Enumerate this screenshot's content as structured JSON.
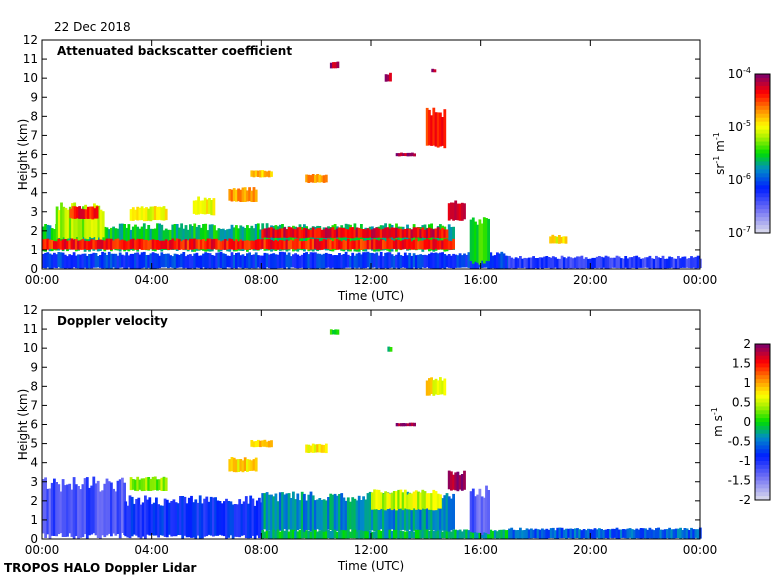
{
  "header": {
    "date": "22 Dec 2018"
  },
  "footer": {
    "instrument": "TROPOS HALO Doppler Lidar"
  },
  "chart_data": [
    {
      "type": "heatmap",
      "title": "Attenuated backscatter coefficient",
      "xlabel": "Time (UTC)",
      "ylabel": "Height (km)",
      "xlim": [
        0,
        24
      ],
      "ylim": [
        0,
        12
      ],
      "xticks": [
        "00:00",
        "04:00",
        "08:00",
        "12:00",
        "16:00",
        "20:00",
        "00:00"
      ],
      "yticks": [
        "0",
        "1",
        "2",
        "3",
        "4",
        "5",
        "6",
        "7",
        "8",
        "9",
        "10",
        "11",
        "12"
      ],
      "colorbar": {
        "label_base": "sr",
        "label_exp1": "-1",
        "label_m": " m",
        "label_exp2": "-1",
        "scale": "log",
        "range": [
          -7,
          -4
        ],
        "ticks": [
          {
            "base": "10",
            "exp": "-4"
          },
          {
            "base": "10",
            "exp": "-5"
          },
          {
            "base": "10",
            "exp": "-6"
          },
          {
            "base": "10",
            "exp": "-7"
          }
        ]
      },
      "features": [
        {
          "t": [
            0,
            17
          ],
          "h": [
            0,
            0.9
          ],
          "v": -6.1
        },
        {
          "t": [
            17,
            24
          ],
          "h": [
            0,
            0.7
          ],
          "v": -6.3
        },
        {
          "t": [
            0,
            15
          ],
          "h": [
            0.9,
            2.4
          ],
          "v": -5.6
        },
        {
          "t": [
            0.5,
            2.2
          ],
          "h": [
            1.5,
            3.5
          ],
          "v": -5.2
        },
        {
          "t": [
            0,
            15
          ],
          "h": [
            1.0,
            1.6
          ],
          "v": -4.4
        },
        {
          "t": [
            8,
            14.8
          ],
          "h": [
            1.6,
            2.2
          ],
          "v": -4.3
        },
        {
          "t": [
            1,
            2
          ],
          "h": [
            2.6,
            3.3
          ],
          "v": -4.4
        },
        {
          "t": [
            3.2,
            4.5
          ],
          "h": [
            2.5,
            3.3
          ],
          "v": -5.0
        },
        {
          "t": [
            5.5,
            6.3
          ],
          "h": [
            2.8,
            3.8
          ],
          "v": -5.0
        },
        {
          "t": [
            6.8,
            7.8
          ],
          "h": [
            3.5,
            4.3
          ],
          "v": -4.7
        },
        {
          "t": [
            7.6,
            8.4
          ],
          "h": [
            4.8,
            5.2
          ],
          "v": -4.8
        },
        {
          "t": [
            9.6,
            10.4
          ],
          "h": [
            4.5,
            5.0
          ],
          "v": -4.7
        },
        {
          "t": [
            14.8,
            15.4
          ],
          "h": [
            2.5,
            3.6
          ],
          "v": -4.3
        },
        {
          "t": [
            15.6,
            16.3
          ],
          "h": [
            0.2,
            2.8
          ],
          "v": -5.5
        },
        {
          "t": [
            18.5,
            19.1
          ],
          "h": [
            1.3,
            1.8
          ],
          "v": -5.0
        },
        {
          "t": [
            12.9,
            13.6
          ],
          "h": [
            5.9,
            6.1
          ],
          "v": -4.1
        },
        {
          "t": [
            14.0,
            14.7
          ],
          "h": [
            6.3,
            8.5
          ],
          "v": -4.4
        },
        {
          "t": [
            12.5,
            12.7
          ],
          "h": [
            9.8,
            10.3
          ],
          "v": -4.2
        },
        {
          "t": [
            10.5,
            10.8
          ],
          "h": [
            10.5,
            10.9
          ],
          "v": -4.1
        },
        {
          "t": [
            14.2,
            14.3
          ],
          "h": [
            10.3,
            10.5
          ],
          "v": -4.1
        }
      ]
    },
    {
      "type": "heatmap",
      "title": "Doppler velocity",
      "xlabel": "Time (UTC)",
      "ylabel": "Height (km)",
      "xlim": [
        0,
        24
      ],
      "ylim": [
        0,
        12
      ],
      "xticks": [
        "00:00",
        "04:00",
        "08:00",
        "12:00",
        "16:00",
        "20:00",
        "00:00"
      ],
      "yticks": [
        "0",
        "1",
        "2",
        "3",
        "4",
        "5",
        "6",
        "7",
        "8",
        "9",
        "10",
        "11",
        "12"
      ],
      "colorbar": {
        "label_base": "m s",
        "label_exp1": "-1",
        "scale": "linear",
        "range": [
          -2,
          2
        ],
        "ticks": [
          "2",
          "1.5",
          "1",
          "0.5",
          "0",
          "-0.5",
          "-1",
          "-1.5",
          "-2"
        ]
      },
      "features": [
        {
          "t": [
            0,
            3
          ],
          "h": [
            0,
            3.3
          ],
          "v": -1.2
        },
        {
          "t": [
            3,
            8
          ],
          "h": [
            0,
            2.3
          ],
          "v": -0.9
        },
        {
          "t": [
            8,
            15
          ],
          "h": [
            0.3,
            2.5
          ],
          "v": -0.4
        },
        {
          "t": [
            12,
            14.5
          ],
          "h": [
            1.5,
            2.6
          ],
          "v": 0.5
        },
        {
          "t": [
            8,
            17
          ],
          "h": [
            0,
            0.5
          ],
          "v": -0.2
        },
        {
          "t": [
            17,
            24
          ],
          "h": [
            0,
            0.6
          ],
          "v": -0.6
        },
        {
          "t": [
            3.2,
            4.5
          ],
          "h": [
            2.5,
            3.3
          ],
          "v": 0.3
        },
        {
          "t": [
            6.8,
            7.8
          ],
          "h": [
            3.5,
            4.3
          ],
          "v": 0.8
        },
        {
          "t": [
            7.6,
            8.4
          ],
          "h": [
            4.8,
            5.2
          ],
          "v": 0.9
        },
        {
          "t": [
            9.6,
            10.4
          ],
          "h": [
            4.5,
            5.0
          ],
          "v": 0.7
        },
        {
          "t": [
            14.8,
            15.4
          ],
          "h": [
            2.5,
            3.6
          ],
          "v": 1.9
        },
        {
          "t": [
            15.6,
            16.3
          ],
          "h": [
            0.2,
            2.8
          ],
          "v": -1.3
        },
        {
          "t": [
            12.9,
            13.6
          ],
          "h": [
            5.9,
            6.1
          ],
          "v": 1.9
        },
        {
          "t": [
            14.0,
            14.7
          ],
          "h": [
            7.5,
            8.5
          ],
          "v": 0.7
        },
        {
          "t": [
            10.5,
            10.8
          ],
          "h": [
            10.7,
            11.0
          ],
          "v": 0.1
        },
        {
          "t": [
            12.6,
            12.7
          ],
          "h": [
            9.8,
            10.1
          ],
          "v": -0.1
        }
      ]
    }
  ]
}
